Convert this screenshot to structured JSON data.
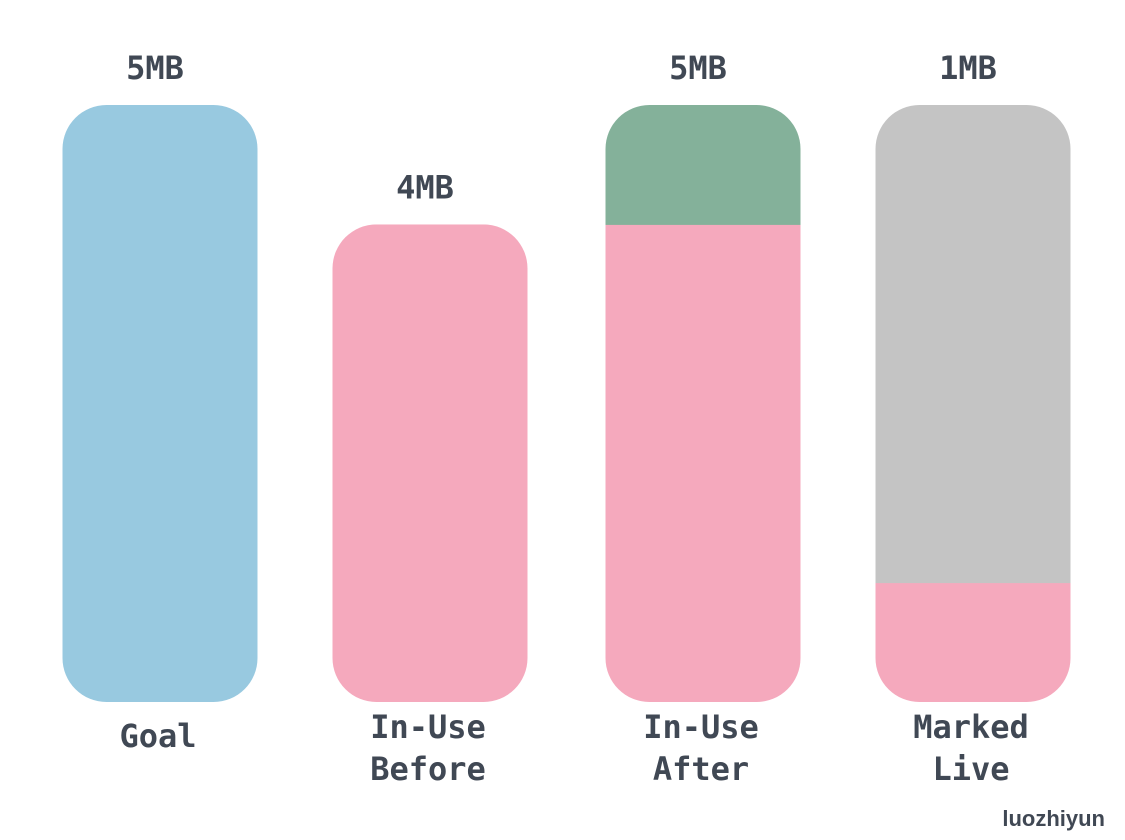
{
  "chart_data": {
    "type": "bar",
    "stacked": true,
    "ylim": [
      0,
      5.2
    ],
    "categories": [
      {
        "lines": [
          "Goal"
        ]
      },
      {
        "lines": [
          "In-Use",
          "Before"
        ]
      },
      {
        "lines": [
          "In-Use",
          "After"
        ]
      },
      {
        "lines": [
          "Marked",
          "Live"
        ]
      }
    ],
    "value_labels": [
      "5MB",
      "4MB",
      "5MB",
      "1MB"
    ],
    "bars": [
      {
        "total": 5,
        "segments": [
          {
            "value": 5,
            "color": "#98c9e0"
          }
        ]
      },
      {
        "total": 4,
        "segments": [
          {
            "value": 4,
            "color": "#f5a9bd"
          }
        ]
      },
      {
        "total": 5,
        "segments": [
          {
            "value": 4,
            "color": "#f5a9bd"
          },
          {
            "value": 1,
            "color": "#84b19a"
          }
        ]
      },
      {
        "total": 5,
        "segments": [
          {
            "value": 1,
            "color": "#f5a9bd"
          },
          {
            "value": 4,
            "color": "#c4c4c4"
          }
        ]
      }
    ],
    "grid": false,
    "legend": "none"
  },
  "watermark": "luozhiyun"
}
